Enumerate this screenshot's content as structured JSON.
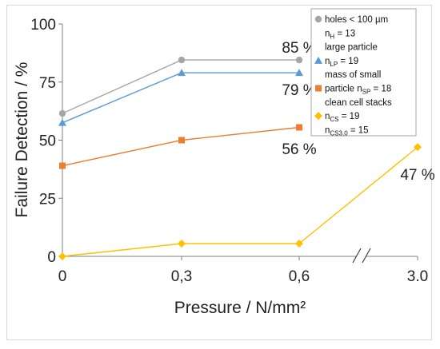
{
  "chart_data": {
    "type": "line",
    "title": "",
    "xlabel": "Pressure / N/mm²",
    "ylabel": "Failure Detection / %",
    "x_tick_labels": [
      "0",
      "0,3",
      "0,6",
      "3.0"
    ],
    "x_values": [
      0,
      0.3,
      0.6,
      3.0
    ],
    "x_axis_break": "between 0,6 and 3.0",
    "ylim": [
      0,
      100
    ],
    "y_ticks": [
      "0",
      "25",
      "50",
      "75",
      "100"
    ],
    "grid": false,
    "legend_position": "top-right",
    "series": [
      {
        "name_parts": [
          [
            "holes < 100 µm",
            ""
          ],
          [
            "n",
            ""
          ],
          [
            "H",
            "sub"
          ],
          [
            " = 13",
            ""
          ]
        ],
        "name": "holes < 100 µm nH = 13",
        "color": "#a6a6a6",
        "marker": "circle",
        "x": [
          0,
          0.3,
          0.6
        ],
        "values": [
          61.5,
          84.5,
          84.5
        ],
        "data_label": "85 %"
      },
      {
        "name": "large particle nLP = 19",
        "color": "#5b9bd5",
        "marker": "triangle",
        "x": [
          0,
          0.3,
          0.6
        ],
        "values": [
          57.5,
          79,
          79
        ],
        "data_label": "79 %"
      },
      {
        "name": "mass of small particle nSP = 18",
        "color": "#ed7d31",
        "marker": "square",
        "x": [
          0,
          0.3,
          0.6
        ],
        "values": [
          39,
          50,
          55.5
        ],
        "data_label": "56 %"
      },
      {
        "name": "clean cell stacks nCS = 19 nCS3,0 = 15",
        "color": "#ffc000",
        "marker": "diamond",
        "x": [
          0,
          0.3,
          0.6,
          3.0
        ],
        "values": [
          0,
          5.5,
          5.5,
          47
        ],
        "data_label": "47 %"
      }
    ],
    "legend": {
      "lines": [
        {
          "parts": [
            [
              "holes < 100 µm",
              ""
            ]
          ],
          "series": 0
        },
        {
          "parts": [
            [
              "n",
              ""
            ],
            [
              "H",
              "sub"
            ],
            [
              " = 13",
              ""
            ]
          ]
        },
        {
          "parts": [
            [
              "large particle",
              ""
            ]
          ]
        },
        {
          "parts": [
            [
              "n",
              ""
            ],
            [
              "LP",
              "sub"
            ],
            [
              " = 19",
              ""
            ]
          ],
          "series": 1
        },
        {
          "parts": [
            [
              "mass of small",
              ""
            ]
          ]
        },
        {
          "parts": [
            [
              "particle n",
              ""
            ],
            [
              "SP",
              "sub"
            ],
            [
              " = 18",
              ""
            ]
          ],
          "series": 2
        },
        {
          "parts": [
            [
              "clean cell stacks",
              ""
            ]
          ]
        },
        {
          "parts": [
            [
              "n",
              ""
            ],
            [
              "CS",
              "sub"
            ],
            [
              " = 19",
              ""
            ]
          ],
          "series": 3
        },
        {
          "parts": [
            [
              "n",
              ""
            ],
            [
              "CS3,0",
              "sub"
            ],
            [
              " = 15",
              ""
            ]
          ]
        }
      ]
    }
  }
}
